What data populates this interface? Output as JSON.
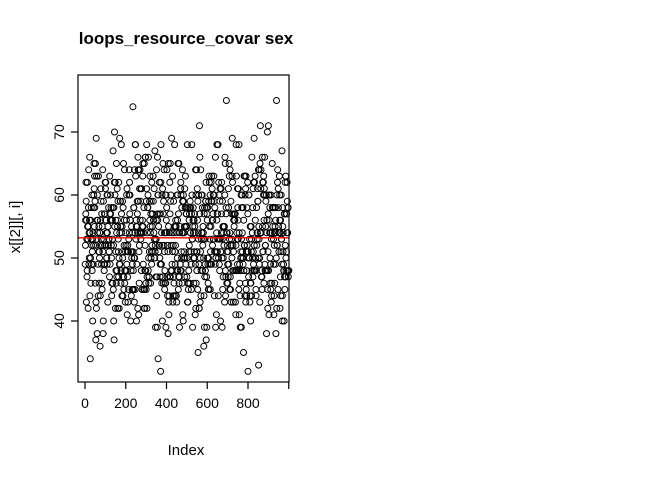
{
  "window": {
    "background": "#ffffff",
    "foreground": "#000000"
  },
  "chart_data": {
    "type": "scatter",
    "title": "loops_resource_covar sex",
    "xlabel": "Index",
    "ylabel": "x[[2]][, i]",
    "legend": null,
    "grid": false,
    "xlim": [
      -35,
      1001
    ],
    "ylim": [
      30.3,
      79.1
    ],
    "xticks": [
      {
        "value": 0,
        "label": "0"
      },
      {
        "value": 200,
        "label": "200"
      },
      {
        "value": 400,
        "label": "400"
      },
      {
        "value": 600,
        "label": "600"
      },
      {
        "value": 800,
        "label": "800"
      },
      {
        "value": 1000,
        "label": ""
      }
    ],
    "yticks": [
      {
        "value": 40,
        "label": "40"
      },
      {
        "value": 50,
        "label": "50"
      },
      {
        "value": 60,
        "label": "60"
      },
      {
        "value": 70,
        "label": "70"
      }
    ],
    "n_points": 1000,
    "x_values": "sequential index 1..1000",
    "y_distribution": {
      "shape": "normal",
      "mean": 53.2,
      "sd": 6.9,
      "rounded_to_integers": true,
      "observed_min": 32,
      "observed_max": 78,
      "seed": 20
    },
    "marker": {
      "type": "open-circle",
      "radius_px": 3,
      "color": "#000000"
    },
    "mean_line": {
      "y": 53.2,
      "color": "#ff0000",
      "style": "solid"
    }
  }
}
